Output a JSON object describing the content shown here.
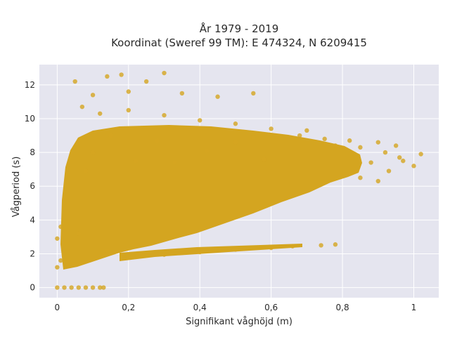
{
  "chart_data": {
    "type": "scatter",
    "title_lines": [
      "År 1979 - 2019",
      "Koordinat (Sweref 99 TM): E 474324, N 6209415"
    ],
    "xlabel": "Signifikant våghöjd (m)",
    "ylabel": "Vågperiod (s)",
    "xlim": [
      -0.05,
      1.07
    ],
    "ylim": [
      -0.6,
      13.2
    ],
    "x_ticks": [
      0,
      0.2,
      0.4,
      0.6,
      0.8,
      1
    ],
    "x_tick_labels": [
      "0",
      "0,2",
      "0,4",
      "0,6",
      "0,8",
      "1"
    ],
    "y_ticks": [
      0,
      2,
      4,
      6,
      8,
      10,
      12
    ],
    "y_tick_labels": [
      "0",
      "2",
      "4",
      "6",
      "8",
      "10",
      "12"
    ],
    "grid": true,
    "marker_color": "#D4A520",
    "plot_background": "#E5E5EF",
    "series": [
      {
        "points": [
          [
            0.0,
            0.0
          ],
          [
            0.02,
            0.0
          ],
          [
            0.04,
            0.0
          ],
          [
            0.06,
            0.0
          ],
          [
            0.08,
            0.0
          ],
          [
            0.1,
            0.0
          ],
          [
            0.12,
            0.0
          ],
          [
            0.13,
            0.0
          ],
          [
            0.0,
            2.9
          ],
          [
            0.0,
            1.2
          ],
          [
            0.01,
            3.6
          ],
          [
            0.01,
            1.6
          ],
          [
            0.14,
            2.2
          ],
          [
            0.2,
            1.8
          ],
          [
            0.3,
            1.95
          ],
          [
            0.4,
            2.1
          ],
          [
            0.5,
            2.25
          ],
          [
            0.6,
            2.35
          ],
          [
            0.66,
            2.45
          ],
          [
            0.74,
            2.5
          ],
          [
            0.78,
            2.55
          ],
          [
            0.05,
            12.2
          ],
          [
            0.1,
            11.4
          ],
          [
            0.14,
            12.5
          ],
          [
            0.18,
            12.6
          ],
          [
            0.2,
            11.6
          ],
          [
            0.25,
            12.2
          ],
          [
            0.3,
            12.7
          ],
          [
            0.35,
            11.5
          ],
          [
            0.45,
            11.3
          ],
          [
            0.55,
            11.5
          ],
          [
            0.07,
            10.7
          ],
          [
            0.12,
            10.3
          ],
          [
            0.2,
            10.5
          ],
          [
            0.3,
            10.2
          ],
          [
            0.4,
            9.9
          ],
          [
            0.5,
            9.7
          ],
          [
            0.55,
            8.9
          ],
          [
            0.6,
            9.4
          ],
          [
            0.68,
            9.0
          ],
          [
            0.7,
            9.3
          ],
          [
            0.75,
            8.8
          ],
          [
            0.78,
            8.4
          ],
          [
            0.82,
            8.7
          ],
          [
            0.85,
            8.3
          ],
          [
            0.9,
            8.6
          ],
          [
            0.92,
            8.0
          ],
          [
            0.95,
            8.4
          ],
          [
            0.97,
            7.5
          ],
          [
            1.0,
            7.2
          ],
          [
            1.02,
            7.9
          ],
          [
            0.85,
            6.5
          ],
          [
            0.9,
            6.3
          ],
          [
            0.88,
            7.4
          ],
          [
            0.93,
            6.9
          ],
          [
            0.96,
            7.7
          ],
          [
            0.06,
            3.2
          ],
          [
            0.08,
            6.9
          ],
          [
            0.1,
            8.0
          ],
          [
            0.15,
            9.0
          ],
          [
            0.22,
            7.5
          ],
          [
            0.28,
            8.7
          ],
          [
            0.33,
            7.4
          ],
          [
            0.42,
            8.1
          ],
          [
            0.5,
            8.6
          ],
          [
            0.58,
            7.6
          ]
        ]
      }
    ]
  }
}
